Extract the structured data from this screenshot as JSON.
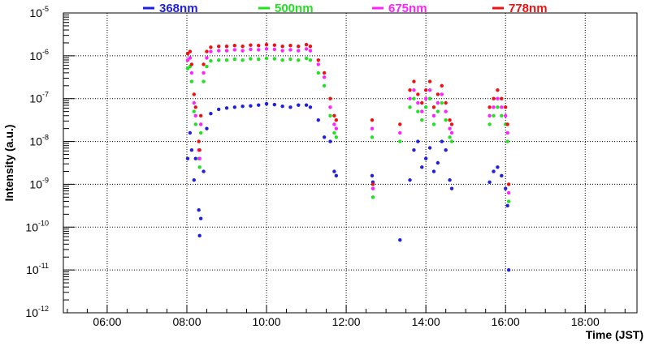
{
  "chart_data": {
    "type": "scatter",
    "xlabel": "Time (JST)",
    "ylabel": "Intensity (a.u.)",
    "x_range_hours": [
      4.9,
      19.3
    ],
    "x_ticks": [
      {
        "h": 6,
        "label": "06:00"
      },
      {
        "h": 8,
        "label": "08:00"
      },
      {
        "h": 10,
        "label": "10:00"
      },
      {
        "h": 12,
        "label": "12:00"
      },
      {
        "h": 14,
        "label": "14:00"
      },
      {
        "h": 16,
        "label": "16:00"
      },
      {
        "h": 18,
        "label": "18:00"
      }
    ],
    "y_scale": "log",
    "y_range_exp": [
      -12,
      -5
    ],
    "y_ticks": [
      {
        "e": -5,
        "base": "10",
        "exp": "-5"
      },
      {
        "e": -6,
        "base": "10",
        "exp": "-6"
      },
      {
        "e": -7,
        "base": "10",
        "exp": "-7"
      },
      {
        "e": -8,
        "base": "10",
        "exp": "-8"
      },
      {
        "e": -9,
        "base": "10",
        "exp": "-9"
      },
      {
        "e": -10,
        "base": "10",
        "exp": "-10"
      },
      {
        "e": -11,
        "base": "10",
        "exp": "-11"
      },
      {
        "e": -12,
        "base": "10",
        "exp": "-12"
      }
    ],
    "grid": true,
    "legend_position": "top",
    "series": [
      {
        "name": "368nm",
        "color": "#1f1fe0",
        "points": [
          [
            8.02,
            -8.4
          ],
          [
            8.08,
            -7.8
          ],
          [
            8.12,
            -8.2
          ],
          [
            8.18,
            -8.9
          ],
          [
            8.22,
            -8.4
          ],
          [
            8.3,
            -9.6
          ],
          [
            8.32,
            -10.2
          ],
          [
            8.35,
            -9.8
          ],
          [
            8.42,
            -8.7
          ],
          [
            8.5,
            -7.7
          ],
          [
            8.6,
            -7.35
          ],
          [
            8.8,
            -7.25
          ],
          [
            9.0,
            -7.22
          ],
          [
            9.2,
            -7.2
          ],
          [
            9.4,
            -7.18
          ],
          [
            9.6,
            -7.17
          ],
          [
            9.8,
            -7.15
          ],
          [
            10.0,
            -7.12
          ],
          [
            10.2,
            -7.14
          ],
          [
            10.4,
            -7.18
          ],
          [
            10.6,
            -7.2
          ],
          [
            10.8,
            -7.15
          ],
          [
            11.0,
            -7.15
          ],
          [
            11.1,
            -7.2
          ],
          [
            11.3,
            -7.5
          ],
          [
            11.45,
            -7.9
          ],
          [
            11.6,
            -8.0
          ],
          [
            11.7,
            -8.7
          ],
          [
            11.75,
            -8.8
          ],
          [
            12.65,
            -8.8
          ],
          [
            12.67,
            -8.95
          ],
          [
            13.35,
            -10.3
          ],
          [
            13.6,
            -8.9
          ],
          [
            13.7,
            -8.2
          ],
          [
            13.8,
            -8.0
          ],
          [
            13.9,
            -8.6
          ],
          [
            14.0,
            -8.4
          ],
          [
            14.1,
            -8.15
          ],
          [
            14.2,
            -8.7
          ],
          [
            14.3,
            -8.5
          ],
          [
            14.4,
            -8.0
          ],
          [
            14.5,
            -8.2
          ],
          [
            14.6,
            -8.9
          ],
          [
            14.65,
            -9.1
          ],
          [
            15.6,
            -8.95
          ],
          [
            15.7,
            -8.7
          ],
          [
            15.8,
            -8.6
          ],
          [
            15.9,
            -8.8
          ],
          [
            16.0,
            -9.1
          ],
          [
            16.05,
            -9.5
          ],
          [
            16.08,
            -11.0
          ]
        ]
      },
      {
        "name": "500nm",
        "color": "#22e022",
        "points": [
          [
            8.02,
            -6.3
          ],
          [
            8.08,
            -6.25
          ],
          [
            8.12,
            -6.6
          ],
          [
            8.18,
            -7.3
          ],
          [
            8.22,
            -7.6
          ],
          [
            8.3,
            -8.4
          ],
          [
            8.32,
            -8.6
          ],
          [
            8.35,
            -7.8
          ],
          [
            8.42,
            -6.6
          ],
          [
            8.5,
            -6.25
          ],
          [
            8.6,
            -6.12
          ],
          [
            8.8,
            -6.1
          ],
          [
            9.0,
            -6.1
          ],
          [
            9.2,
            -6.08
          ],
          [
            9.4,
            -6.1
          ],
          [
            9.6,
            -6.07
          ],
          [
            9.8,
            -6.08
          ],
          [
            10.0,
            -6.06
          ],
          [
            10.2,
            -6.07
          ],
          [
            10.4,
            -6.1
          ],
          [
            10.6,
            -6.08
          ],
          [
            10.8,
            -6.1
          ],
          [
            11.0,
            -6.06
          ],
          [
            11.1,
            -6.1
          ],
          [
            11.3,
            -6.4
          ],
          [
            11.45,
            -6.7
          ],
          [
            11.6,
            -7.4
          ],
          [
            11.7,
            -7.8
          ],
          [
            11.75,
            -7.9
          ],
          [
            12.65,
            -7.9
          ],
          [
            12.67,
            -9.3
          ],
          [
            13.35,
            -8.0
          ],
          [
            13.6,
            -7.2
          ],
          [
            13.7,
            -7.0
          ],
          [
            13.8,
            -7.3
          ],
          [
            13.9,
            -7.5
          ],
          [
            14.0,
            -7.2
          ],
          [
            14.1,
            -7.0
          ],
          [
            14.2,
            -7.6
          ],
          [
            14.3,
            -7.3
          ],
          [
            14.4,
            -7.1
          ],
          [
            14.5,
            -7.5
          ],
          [
            14.6,
            -7.9
          ],
          [
            14.65,
            -8.0
          ],
          [
            15.6,
            -7.6
          ],
          [
            15.7,
            -7.4
          ],
          [
            15.8,
            -7.2
          ],
          [
            15.9,
            -7.4
          ],
          [
            16.0,
            -7.6
          ],
          [
            16.05,
            -8.0
          ],
          [
            16.08,
            -9.4
          ]
        ]
      },
      {
        "name": "675nm",
        "color": "#ff22ff",
        "points": [
          [
            8.02,
            -6.1
          ],
          [
            8.08,
            -6.05
          ],
          [
            8.12,
            -6.4
          ],
          [
            8.18,
            -7.1
          ],
          [
            8.22,
            -7.4
          ],
          [
            8.3,
            -8.2
          ],
          [
            8.32,
            -8.4
          ],
          [
            8.35,
            -7.6
          ],
          [
            8.42,
            -6.4
          ],
          [
            8.5,
            -6.05
          ],
          [
            8.6,
            -5.9
          ],
          [
            8.8,
            -5.88
          ],
          [
            9.0,
            -5.88
          ],
          [
            9.2,
            -5.86
          ],
          [
            9.4,
            -5.88
          ],
          [
            9.6,
            -5.85
          ],
          [
            9.8,
            -5.86
          ],
          [
            10.0,
            -5.84
          ],
          [
            10.2,
            -5.85
          ],
          [
            10.4,
            -5.88
          ],
          [
            10.6,
            -5.86
          ],
          [
            10.8,
            -5.88
          ],
          [
            11.0,
            -5.84
          ],
          [
            11.1,
            -5.88
          ],
          [
            11.3,
            -6.2
          ],
          [
            11.45,
            -6.5
          ],
          [
            11.6,
            -7.2
          ],
          [
            11.7,
            -7.6
          ],
          [
            11.75,
            -7.7
          ],
          [
            12.65,
            -7.7
          ],
          [
            12.67,
            -9.1
          ],
          [
            13.35,
            -7.8
          ],
          [
            13.6,
            -7.0
          ],
          [
            13.7,
            -6.8
          ],
          [
            13.8,
            -7.1
          ],
          [
            13.9,
            -7.3
          ],
          [
            14.0,
            -7.0
          ],
          [
            14.1,
            -6.8
          ],
          [
            14.2,
            -7.4
          ],
          [
            14.3,
            -7.1
          ],
          [
            14.4,
            -6.9
          ],
          [
            14.5,
            -7.3
          ],
          [
            14.6,
            -7.7
          ],
          [
            14.65,
            -7.8
          ],
          [
            15.6,
            -7.4
          ],
          [
            15.7,
            -7.2
          ],
          [
            15.8,
            -7.0
          ],
          [
            15.9,
            -7.2
          ],
          [
            16.0,
            -7.4
          ],
          [
            16.05,
            -7.8
          ],
          [
            16.08,
            -9.2
          ]
        ]
      },
      {
        "name": "778nm",
        "color": "#ee1111",
        "points": [
          [
            8.02,
            -5.95
          ],
          [
            8.08,
            -5.9
          ],
          [
            8.12,
            -6.2
          ],
          [
            8.18,
            -6.9
          ],
          [
            8.22,
            -7.2
          ],
          [
            8.3,
            -8.0
          ],
          [
            8.32,
            -8.2
          ],
          [
            8.35,
            -7.4
          ],
          [
            8.42,
            -6.2
          ],
          [
            8.5,
            -5.9
          ],
          [
            8.6,
            -5.8
          ],
          [
            8.8,
            -5.78
          ],
          [
            9.0,
            -5.78
          ],
          [
            9.2,
            -5.76
          ],
          [
            9.4,
            -5.78
          ],
          [
            9.6,
            -5.75
          ],
          [
            9.8,
            -5.76
          ],
          [
            10.0,
            -5.74
          ],
          [
            10.2,
            -5.75
          ],
          [
            10.4,
            -5.78
          ],
          [
            10.6,
            -5.76
          ],
          [
            10.8,
            -5.78
          ],
          [
            11.0,
            -5.74
          ],
          [
            11.1,
            -5.78
          ],
          [
            11.3,
            -6.1
          ],
          [
            11.45,
            -6.4
          ],
          [
            11.6,
            -7.0
          ],
          [
            11.7,
            -7.4
          ],
          [
            11.75,
            -7.5
          ],
          [
            12.65,
            -7.5
          ],
          [
            12.67,
            -9.0
          ],
          [
            13.35,
            -7.6
          ],
          [
            13.6,
            -6.8
          ],
          [
            13.7,
            -6.6
          ],
          [
            13.8,
            -6.9
          ],
          [
            13.9,
            -7.1
          ],
          [
            14.0,
            -6.8
          ],
          [
            14.1,
            -6.6
          ],
          [
            14.2,
            -7.2
          ],
          [
            14.3,
            -6.9
          ],
          [
            14.4,
            -6.7
          ],
          [
            14.5,
            -7.1
          ],
          [
            14.6,
            -7.5
          ],
          [
            14.65,
            -7.6
          ],
          [
            15.6,
            -7.2
          ],
          [
            15.7,
            -7.0
          ],
          [
            15.8,
            -6.8
          ],
          [
            15.9,
            -7.0
          ],
          [
            16.0,
            -7.2
          ],
          [
            16.05,
            -7.6
          ],
          [
            16.08,
            -9.0
          ]
        ]
      }
    ]
  }
}
